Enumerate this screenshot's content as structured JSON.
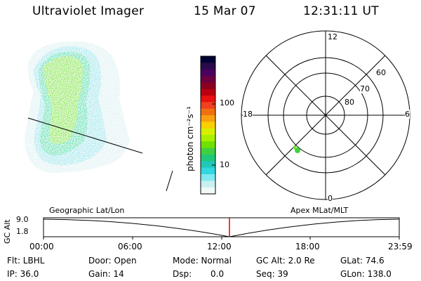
{
  "header": {
    "instrument": "Ultraviolet Imager",
    "date": "15 Mar 07",
    "time": "12:31:11 UT"
  },
  "colorbar": {
    "label": "photon cm⁻²s⁻¹",
    "ticks": [
      "100",
      "10"
    ],
    "colors": [
      "#000033",
      "#2a0a4a",
      "#4a0060",
      "#6a0040",
      "#8a0020",
      "#b80010",
      "#e81010",
      "#f04020",
      "#f07010",
      "#f8a010",
      "#f8d000",
      "#d8f000",
      "#a8f000",
      "#70e000",
      "#40d040",
      "#20c878",
      "#20c8b8",
      "#30d8e0",
      "#80e8f0",
      "#c8f0f0",
      "#f0f8f8"
    ]
  },
  "polar": {
    "mlt_labels": {
      "top": "12",
      "bottom": "0",
      "left": "18",
      "right": "6"
    },
    "lat_labels": [
      "60",
      "70",
      "80"
    ]
  },
  "timeline": {
    "left_label": "Geographic Lat/Lon",
    "right_label": "Apex MLat/MLT",
    "axis_label": "GC Alt",
    "y_ticks": [
      "9.0",
      "1.8"
    ],
    "x_ticks": [
      "00:00",
      "06:00",
      "12:00",
      "18:00",
      "23:59"
    ]
  },
  "info": {
    "flt": "Flt: LBHL",
    "ip": "IP: 36.0",
    "door": "Door: Open",
    "gain": "Gain: 14",
    "mode": "Mode: Normal",
    "dsp_label": "Dsp:",
    "dsp_value": "0.0",
    "gcalt": "GC Alt: 2.0 Re",
    "seq": "Seq: 39",
    "glat": "GLat: 74.6",
    "glon": "GLon: 138.0"
  }
}
